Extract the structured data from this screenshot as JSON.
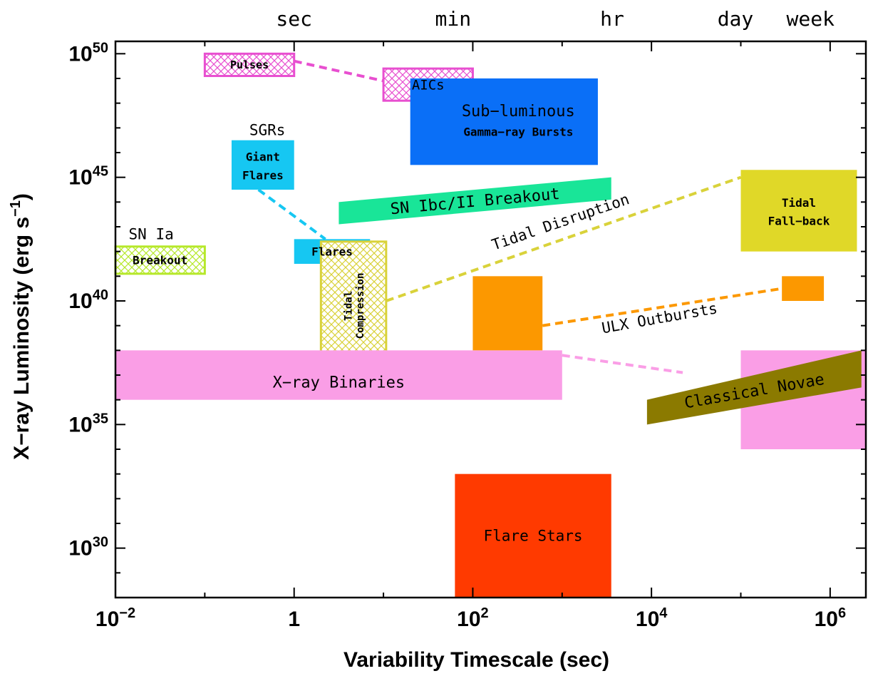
{
  "chart_data": {
    "type": "region_map",
    "title": "",
    "xlabel": "Variability Timescale (sec)",
    "ylabel_main": "X−ray Luminosity (erg s",
    "ylabel_sup": "−1",
    "ylabel_close": ")",
    "x_scale": "log10",
    "y_scale": "log10",
    "xlim_log10": [
      -2,
      6.4
    ],
    "ylim_log10": [
      28,
      50.5
    ],
    "x_ticks": [
      {
        "log": -2,
        "base": "10",
        "exp": "−2"
      },
      {
        "log": 0,
        "base": "1",
        "exp": ""
      },
      {
        "log": 2,
        "base": "10",
        "exp": "2"
      },
      {
        "log": 4,
        "base": "10",
        "exp": "4"
      },
      {
        "log": 6,
        "base": "10",
        "exp": "6"
      }
    ],
    "y_ticks": [
      {
        "log": 30,
        "base": "10",
        "exp": "30"
      },
      {
        "log": 35,
        "base": "10",
        "exp": "35"
      },
      {
        "log": 40,
        "base": "10",
        "exp": "40"
      },
      {
        "log": 45,
        "base": "10",
        "exp": "45"
      },
      {
        "log": 50,
        "base": "10",
        "exp": "50"
      }
    ],
    "top_axis_labels": [
      {
        "label": "sec",
        "log": 0
      },
      {
        "label": "min",
        "log": 1.78
      },
      {
        "label": "hr",
        "log": 3.56
      },
      {
        "label": "day",
        "log": 4.94
      },
      {
        "label": "week",
        "log": 5.78
      }
    ],
    "regions": [
      {
        "name": "Pulses",
        "label": "Pulses",
        "x_log": [
          -1,
          0
        ],
        "y_log": [
          49.1,
          50
        ],
        "fill": "#ffffff",
        "hatch": "#e84fd0",
        "border": "#e84fd0"
      },
      {
        "name": "AICs",
        "label": "AICs",
        "x_log": [
          1,
          2
        ],
        "y_log": [
          48.1,
          49.4
        ],
        "fill": "#ffffff",
        "hatch": "#e84fd0",
        "border": "#e84fd0"
      },
      {
        "name": "Sub-luminous Gamma-ray Bursts",
        "label": "Sub−luminous",
        "label2": "Gamma−ray Bursts",
        "x_log": [
          1.3,
          3.4
        ],
        "y_log": [
          45.5,
          49
        ],
        "fill": "#0a6ff7"
      },
      {
        "name": "SGR Giant Flares",
        "label": "Giant",
        "label2": "Flares",
        "x_log": [
          -0.7,
          0
        ],
        "y_log": [
          44.5,
          46.5
        ],
        "fill": "#16c7f2"
      },
      {
        "name": "Flares",
        "label": "Flares",
        "x_log": [
          0,
          0.85
        ],
        "y_log": [
          41.5,
          42.5
        ],
        "fill": "#16c7f2"
      },
      {
        "name": "SN Ia Breakout",
        "label": "Breakout",
        "x_log": [
          -2,
          -1
        ],
        "y_log": [
          41.1,
          42.2
        ],
        "fill": "#ffffff",
        "hatch": "#b6e82a",
        "border": "#b6e82a"
      },
      {
        "name": "Tidal Compression",
        "label": "Tidal",
        "label2": "Compression",
        "x_log": [
          0.3,
          1.03
        ],
        "y_log": [
          37.2,
          42.4
        ],
        "fill": "#ffffff",
        "hatch": "#d9d23a",
        "border": "#d9d23a"
      },
      {
        "name": "Tidal Fall-back",
        "label": "Tidal",
        "label2": "Fall−back",
        "x_log": [
          5,
          6.3
        ],
        "y_log": [
          42,
          45.3
        ],
        "fill": "#e0d828"
      },
      {
        "name": "Flare Stars",
        "label": "Flare Stars",
        "x_log": [
          1.8,
          3.55
        ],
        "y_log": [
          28,
          33
        ],
        "fill": "#ff3a00"
      },
      {
        "name": "X-ray Binaries",
        "label": "X−ray Binaries",
        "x_log": [
          -2,
          3
        ],
        "y_log": [
          36,
          38
        ],
        "fill": "#fa9ee6"
      },
      {
        "name": "X-ray Binaries (long)",
        "label": "",
        "x_log": [
          5,
          6.5
        ],
        "y_log": [
          34,
          38
        ],
        "fill": "#fa9ee6"
      },
      {
        "name": "ULX Outbursts (short)",
        "label": "",
        "x_log": [
          2,
          2.78
        ],
        "y_log": [
          38,
          41
        ],
        "fill": "#fc9800"
      },
      {
        "name": "ULX Outbursts (long)",
        "label": "",
        "x_log": [
          5.46,
          5.93
        ],
        "y_log": [
          40,
          41
        ],
        "fill": "#fc9800"
      }
    ],
    "polygons": [
      {
        "name": "SN Ibc/II Breakout",
        "label": "SN Ibc/II Breakout",
        "fill": "#19e598",
        "points_log": [
          [
            0.5,
            43.1
          ],
          [
            3.55,
            44.1
          ],
          [
            3.55,
            45
          ],
          [
            0.5,
            44
          ]
        ]
      },
      {
        "name": "Classical Novae",
        "label": "Classical Novae",
        "fill": "#8b7a00",
        "points_log": [
          [
            3.95,
            35
          ],
          [
            6.35,
            36.5
          ],
          [
            6.35,
            38
          ],
          [
            3.95,
            36
          ]
        ]
      }
    ],
    "connectors": [
      {
        "name": "pulses-aics-line",
        "color": "#e84fd0",
        "from_log": [
          0,
          49.7
        ],
        "to_log": [
          1,
          48.9
        ]
      },
      {
        "name": "giant-flares-line",
        "color": "#16c7f2",
        "from_log": [
          -0.4,
          44.5
        ],
        "to_log": [
          0.35,
          42.5
        ]
      },
      {
        "name": "tidal-disruption-line",
        "color": "#d9d23a",
        "from_log": [
          1.03,
          40
        ],
        "to_log": [
          5,
          45
        ]
      },
      {
        "name": "ulx-line",
        "color": "#fc9800",
        "from_log": [
          2.78,
          39
        ],
        "to_log": [
          5.46,
          40.5
        ]
      },
      {
        "name": "xrb-novae-line",
        "color": "#fa9ee6",
        "from_log": [
          3,
          37.8
        ],
        "to_log": [
          4.35,
          37.1
        ]
      }
    ],
    "free_labels": [
      {
        "name": "SGRs",
        "text": "SGRs",
        "log": [
          -0.3,
          46.7
        ]
      },
      {
        "name": "SN Ia",
        "text": "SN Ia",
        "log": [
          -1.6,
          42.5
        ]
      },
      {
        "name": "Tidal Disruption",
        "text": "Tidal Disruption",
        "log": [
          3.0,
          43.0
        ],
        "rotate": -19
      },
      {
        "name": "ULX Outbursts",
        "text": "ULX Outbursts",
        "log": [
          4.1,
          39.1
        ],
        "rotate": -10
      }
    ]
  }
}
